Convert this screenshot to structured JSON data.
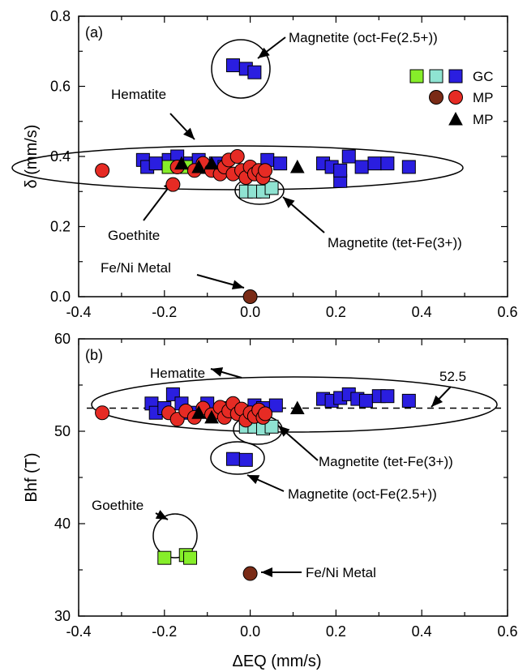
{
  "chart_data": [
    {
      "type": "scatter",
      "panel_label": "(a)",
      "xlim": [
        -0.4,
        0.6
      ],
      "ylim": [
        0.0,
        0.8
      ],
      "xticks": [
        "-0.4",
        "-0.2",
        "0.0",
        "0.2",
        "0.4",
        "0.6"
      ],
      "yticks": [
        "0.0",
        "0.2",
        "0.4",
        "0.6",
        "0.8"
      ],
      "ylabel": "δ (mm/s)",
      "xlabel": "",
      "legend": {
        "placement": "top-right",
        "entries": [
          {
            "label": "GC",
            "markers": [
              "gc-green-square",
              "gc-cyan-square",
              "gc-blue-square"
            ]
          },
          {
            "label": "MP",
            "markers": [
              "mp-brown-circle",
              "mp-red-circle"
            ]
          },
          {
            "label": "MP",
            "markers": [
              "mp-black-triangle"
            ]
          }
        ]
      },
      "annotations": [
        {
          "text": "Magnetite (oct-Fe(2.5+))"
        },
        {
          "text": "Hematite"
        },
        {
          "text": "Goethite"
        },
        {
          "text": "Magnetite (tet-Fe(3+))"
        },
        {
          "text": "Fe/Ni Metal"
        }
      ],
      "series": [
        {
          "marker": "square",
          "color": "#2a1ee0",
          "points": [
            [
              -0.04,
              0.66
            ],
            [
              -0.01,
              0.65
            ],
            [
              0.01,
              0.64
            ],
            [
              -0.25,
              0.39
            ],
            [
              -0.24,
              0.37
            ],
            [
              -0.22,
              0.38
            ],
            [
              -0.19,
              0.39
            ],
            [
              -0.17,
              0.4
            ],
            [
              -0.14,
              0.38
            ],
            [
              -0.12,
              0.39
            ],
            [
              -0.1,
              0.37
            ],
            [
              -0.08,
              0.38
            ],
            [
              -0.06,
              0.37
            ],
            [
              0.04,
              0.39
            ],
            [
              0.07,
              0.38
            ],
            [
              0.17,
              0.38
            ],
            [
              0.19,
              0.37
            ],
            [
              0.21,
              0.33
            ],
            [
              0.23,
              0.4
            ],
            [
              0.21,
              0.36
            ],
            [
              0.26,
              0.37
            ],
            [
              0.29,
              0.38
            ],
            [
              0.32,
              0.38
            ],
            [
              0.37,
              0.37
            ]
          ]
        },
        {
          "marker": "square",
          "color": "#8fe3d2",
          "points": [
            [
              -0.01,
              0.3
            ],
            [
              0.01,
              0.3
            ],
            [
              0.03,
              0.3
            ],
            [
              0.05,
              0.31
            ]
          ]
        },
        {
          "marker": "square",
          "color": "#86ee2a",
          "points": [
            [
              -0.19,
              0.37
            ],
            [
              -0.15,
              0.37
            ]
          ]
        },
        {
          "marker": "circle",
          "color": "#e62b24",
          "points": [
            [
              -0.345,
              0.36
            ],
            [
              -0.18,
              0.32
            ],
            [
              -0.17,
              0.37
            ],
            [
              -0.13,
              0.36
            ],
            [
              -0.11,
              0.38
            ],
            [
              -0.09,
              0.36
            ],
            [
              -0.07,
              0.35
            ],
            [
              -0.06,
              0.37
            ],
            [
              -0.05,
              0.39
            ],
            [
              -0.04,
              0.35
            ],
            [
              -0.03,
              0.4
            ],
            [
              -0.02,
              0.36
            ],
            [
              -0.01,
              0.34
            ],
            [
              0.0,
              0.37
            ],
            [
              0.01,
              0.35
            ],
            [
              0.02,
              0.36
            ],
            [
              0.03,
              0.34
            ],
            [
              0.035,
              0.36
            ]
          ]
        },
        {
          "marker": "circle",
          "color": "#7a2b16",
          "points": [
            [
              0.0,
              0.0
            ]
          ]
        },
        {
          "marker": "triangle",
          "color": "#000000",
          "points": [
            [
              -0.16,
              0.38
            ],
            [
              -0.12,
              0.37
            ],
            [
              -0.09,
              0.38
            ],
            [
              0.11,
              0.37
            ]
          ]
        }
      ]
    },
    {
      "type": "scatter",
      "panel_label": "(b)",
      "xlim": [
        -0.4,
        0.6
      ],
      "ylim": [
        30,
        60
      ],
      "xticks": [
        "-0.4",
        "-0.2",
        "0.0",
        "0.2",
        "0.4",
        "0.6"
      ],
      "yticks": [
        "30",
        "40",
        "50",
        "60"
      ],
      "ylabel": "Bhf (T)",
      "xlabel": "ΔEQ (mm/s)",
      "reference_line": {
        "y": 52.5,
        "label": "52.5",
        "style": "dashed"
      },
      "annotations": [
        {
          "text": "Hematite"
        },
        {
          "text": "Magnetite (tet-Fe(3+))"
        },
        {
          "text": "Magnetite (oct-Fe(2.5+))"
        },
        {
          "text": "Goethite"
        },
        {
          "text": "Fe/Ni Metal"
        }
      ],
      "series": [
        {
          "marker": "square",
          "color": "#2a1ee0",
          "points": [
            [
              -0.23,
              53
            ],
            [
              -0.22,
              52
            ],
            [
              -0.2,
              52.5
            ],
            [
              -0.18,
              54
            ],
            [
              -0.16,
              53
            ],
            [
              -0.14,
              52
            ],
            [
              -0.1,
              53
            ],
            [
              -0.06,
              52.5
            ],
            [
              0.01,
              52.8
            ],
            [
              0.03,
              52.5
            ],
            [
              0.06,
              52.8
            ],
            [
              0.17,
              53.5
            ],
            [
              0.19,
              53.3
            ],
            [
              0.21,
              53.6
            ],
            [
              0.23,
              54
            ],
            [
              0.25,
              53.5
            ],
            [
              0.27,
              53.3
            ],
            [
              0.3,
              53.8
            ],
            [
              0.32,
              53.8
            ],
            [
              0.37,
              53.3
            ],
            [
              -0.04,
              47.0
            ],
            [
              -0.01,
              46.9
            ]
          ]
        },
        {
          "marker": "square",
          "color": "#8fe3d2",
          "points": [
            [
              -0.01,
              50.5
            ],
            [
              0.01,
              50.5
            ],
            [
              0.03,
              50.3
            ],
            [
              0.05,
              50.5
            ]
          ]
        },
        {
          "marker": "square",
          "color": "#86ee2a",
          "points": [
            [
              -0.2,
              36.3
            ],
            [
              -0.15,
              36.6
            ],
            [
              -0.14,
              36.3
            ]
          ]
        },
        {
          "marker": "circle",
          "color": "#e62b24",
          "points": [
            [
              -0.345,
              52.0
            ],
            [
              -0.19,
              52.0
            ],
            [
              -0.17,
              51.3
            ],
            [
              -0.15,
              52.2
            ],
            [
              -0.13,
              51.5
            ],
            [
              -0.11,
              52.5
            ],
            [
              -0.09,
              51.8
            ],
            [
              -0.07,
              52.6
            ],
            [
              -0.06,
              51.5
            ],
            [
              -0.05,
              52.2
            ],
            [
              -0.04,
              53.0
            ],
            [
              -0.03,
              51.9
            ],
            [
              -0.02,
              52.4
            ],
            [
              -0.01,
              51.2
            ],
            [
              0.0,
              52.0
            ],
            [
              0.01,
              51.6
            ],
            [
              0.02,
              52.3
            ],
            [
              0.03,
              51.5
            ],
            [
              0.035,
              51.9
            ]
          ]
        },
        {
          "marker": "circle",
          "color": "#7a2b16",
          "points": [
            [
              0.0,
              34.6
            ]
          ]
        },
        {
          "marker": "triangle",
          "color": "#000000",
          "points": [
            [
              -0.12,
              52.0
            ],
            [
              -0.09,
              51.5
            ],
            [
              0.11,
              52.5
            ]
          ]
        }
      ]
    }
  ]
}
